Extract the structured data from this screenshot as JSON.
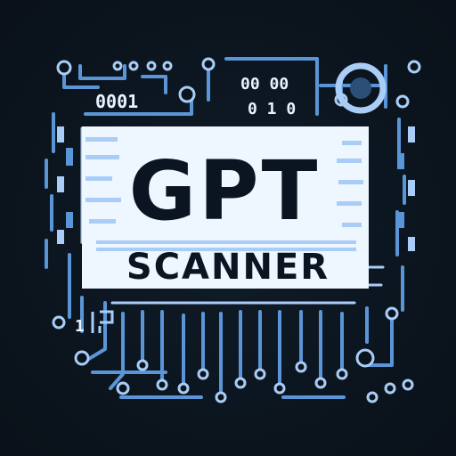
{
  "logo": {
    "main_text": "GPT",
    "sub_text": "SCANNER",
    "binary_left": "0001",
    "binary_right_top": "00 00",
    "binary_right_bottom": "0 1 0",
    "binary_bottom_left": "1",
    "colors": {
      "background": "#0c1520",
      "circuit_blue": "#5a95d8",
      "circuit_light": "#a9cdf7",
      "text_light": "#e9f3ff",
      "dark_text": "#0a1521"
    }
  }
}
